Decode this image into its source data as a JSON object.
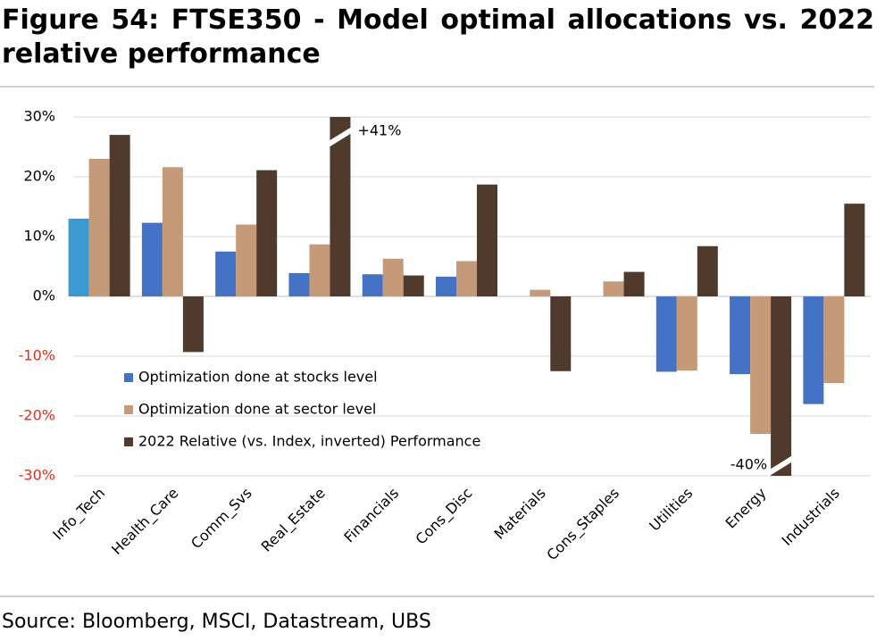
{
  "chart_data": {
    "type": "bar",
    "title": "Figure 54: FTSE350 - Model optimal allocations vs. 2022 relative performance",
    "source": "Source: Bloomberg, MSCI, Datastream, UBS",
    "categories": [
      "Info_Tech",
      "Health_Care",
      "Comm_Svs",
      "Real_Estate",
      "Financials",
      "Cons_Disc",
      "Materials",
      "Cons_Staples",
      "Utilities",
      "Energy",
      "Industrials"
    ],
    "series": [
      {
        "name": "Optimization done at stocks level",
        "color": "#4472c4",
        "colors": [
          "#3c9ad2",
          "#4472c4",
          "#4472c4",
          "#4472c4",
          "#4472c4",
          "#4472c4",
          "#4472c4",
          "#4472c4",
          "#4472c4",
          "#4472c4",
          "#4472c4"
        ],
        "values": [
          13,
          12.3,
          7.5,
          3.9,
          3.7,
          3.3,
          0,
          0,
          -12.6,
          -13,
          -18
        ]
      },
      {
        "name": "Optimization done at sector level",
        "color": "#c49a78",
        "values": [
          23,
          21.6,
          12,
          8.7,
          6.3,
          5.9,
          1.1,
          2.5,
          -12.4,
          -23,
          -14.5
        ]
      },
      {
        "name": "2022 Relative (vs. Index, inverted) Performance",
        "color": "#4f3a2c",
        "values": [
          27,
          -9.3,
          21.1,
          41,
          3.5,
          18.7,
          -12.5,
          4.1,
          8.4,
          -40,
          15.5
        ],
        "value_labels": [
          null,
          null,
          null,
          "+41%",
          null,
          null,
          null,
          null,
          null,
          "-40%",
          null
        ]
      }
    ],
    "ylim": [
      -30,
      30
    ],
    "yticks": [
      {
        "value": -30,
        "label": "-30%"
      },
      {
        "value": -20,
        "label": "-20%"
      },
      {
        "value": -10,
        "label": "-10%"
      },
      {
        "value": 0,
        "label": "0%"
      },
      {
        "value": 10,
        "label": "10%"
      },
      {
        "value": 20,
        "label": "20%"
      },
      {
        "value": 30,
        "label": "30%"
      }
    ],
    "negative_tick_color": "#e0301e",
    "grid": true
  }
}
